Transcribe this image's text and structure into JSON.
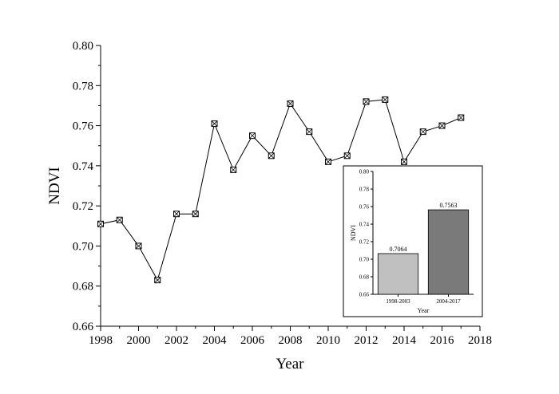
{
  "chart_data": [
    {
      "type": "line",
      "xlabel": "Year",
      "ylabel": "NDVI",
      "xlim": [
        1998,
        2018
      ],
      "ylim": [
        0.66,
        0.8
      ],
      "xticks": [
        "1998",
        "2000",
        "2002",
        "2004",
        "2006",
        "2008",
        "2010",
        "2012",
        "2014",
        "2016",
        "2018"
      ],
      "yticks": [
        "0.66",
        "0.68",
        "0.70",
        "0.72",
        "0.74",
        "0.76",
        "0.78",
        "0.80"
      ],
      "marker": "square-with-x",
      "line_color": "#000000",
      "series": [
        {
          "x": [
            1998,
            1999,
            2000,
            2001,
            2002,
            2003,
            2004,
            2005,
            2006,
            2007,
            2008,
            2009,
            2010,
            2011,
            2012,
            2013,
            2014,
            2015,
            2016,
            2017
          ],
          "values": [
            0.711,
            0.713,
            0.7,
            0.683,
            0.716,
            0.716,
            0.761,
            0.738,
            0.755,
            0.745,
            0.771,
            0.757,
            0.742,
            0.745,
            0.772,
            0.773,
            0.742,
            0.757,
            0.76,
            0.764
          ]
        }
      ]
    },
    {
      "type": "bar",
      "xlabel": "Year",
      "ylabel": "NDVI",
      "ylim": [
        0.66,
        0.8
      ],
      "yticks": [
        "0.66",
        "0.68",
        "0.70",
        "0.72",
        "0.74",
        "0.76",
        "0.78",
        "0.80"
      ],
      "categories": [
        "1998-2003",
        "2004-2017"
      ],
      "values": [
        0.7064,
        0.7563
      ],
      "data_labels": [
        "0.7064",
        "0.7563"
      ],
      "bar_colors": [
        "#c0c0c0",
        "#7a7a7a"
      ]
    }
  ]
}
